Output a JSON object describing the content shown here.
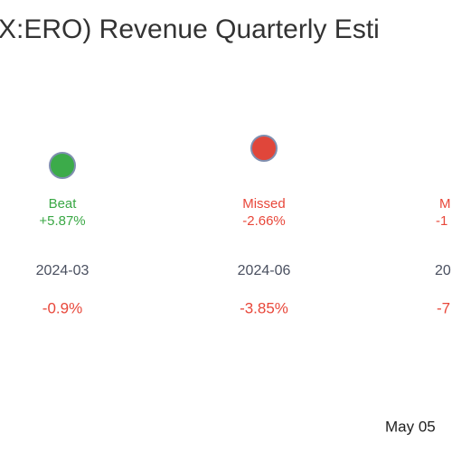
{
  "title": "X:ERO) Revenue Quarterly Esti",
  "columns": [
    {
      "status": "Beat",
      "surprise": "+5.87%",
      "date": "2024-03",
      "change": "-0.9%"
    },
    {
      "status": "Missed",
      "surprise": "-2.66%",
      "date": "2024-06",
      "change": "-3.85%"
    },
    {
      "status": "M",
      "surprise": "-1",
      "date": "20",
      "change": "-7"
    }
  ],
  "footer": "May 05"
}
